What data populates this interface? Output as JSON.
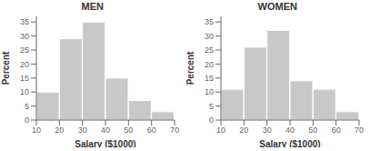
{
  "chart_data": [
    {
      "type": "histogram",
      "title": "MEN",
      "xlabel": "Salary ($1000)",
      "ylabel": "Percent",
      "bins": [
        10,
        20,
        30,
        40,
        50,
        60,
        70
      ],
      "values": [
        10,
        29,
        35,
        15,
        7,
        3
      ],
      "xlim": [
        10,
        70
      ],
      "xticks": [
        10,
        20,
        30,
        40,
        50,
        60,
        70
      ],
      "ylim": [
        0,
        37
      ],
      "yticks": [
        0,
        5,
        10,
        15,
        20,
        25,
        30,
        35
      ],
      "color": "#c8c8c8"
    },
    {
      "type": "histogram",
      "title": "WOMEN",
      "xlabel": "Salary ($1000)",
      "ylabel": "Percent",
      "bins": [
        10,
        20,
        30,
        40,
        50,
        60,
        70
      ],
      "values": [
        11,
        26,
        32,
        14,
        11,
        3
      ],
      "xlim": [
        10,
        70
      ],
      "xticks": [
        10,
        20,
        30,
        40,
        50,
        60,
        70
      ],
      "ylim": [
        0,
        37
      ],
      "yticks": [
        0,
        5,
        10,
        15,
        20,
        25,
        30,
        35
      ],
      "color": "#c8c8c8"
    }
  ]
}
